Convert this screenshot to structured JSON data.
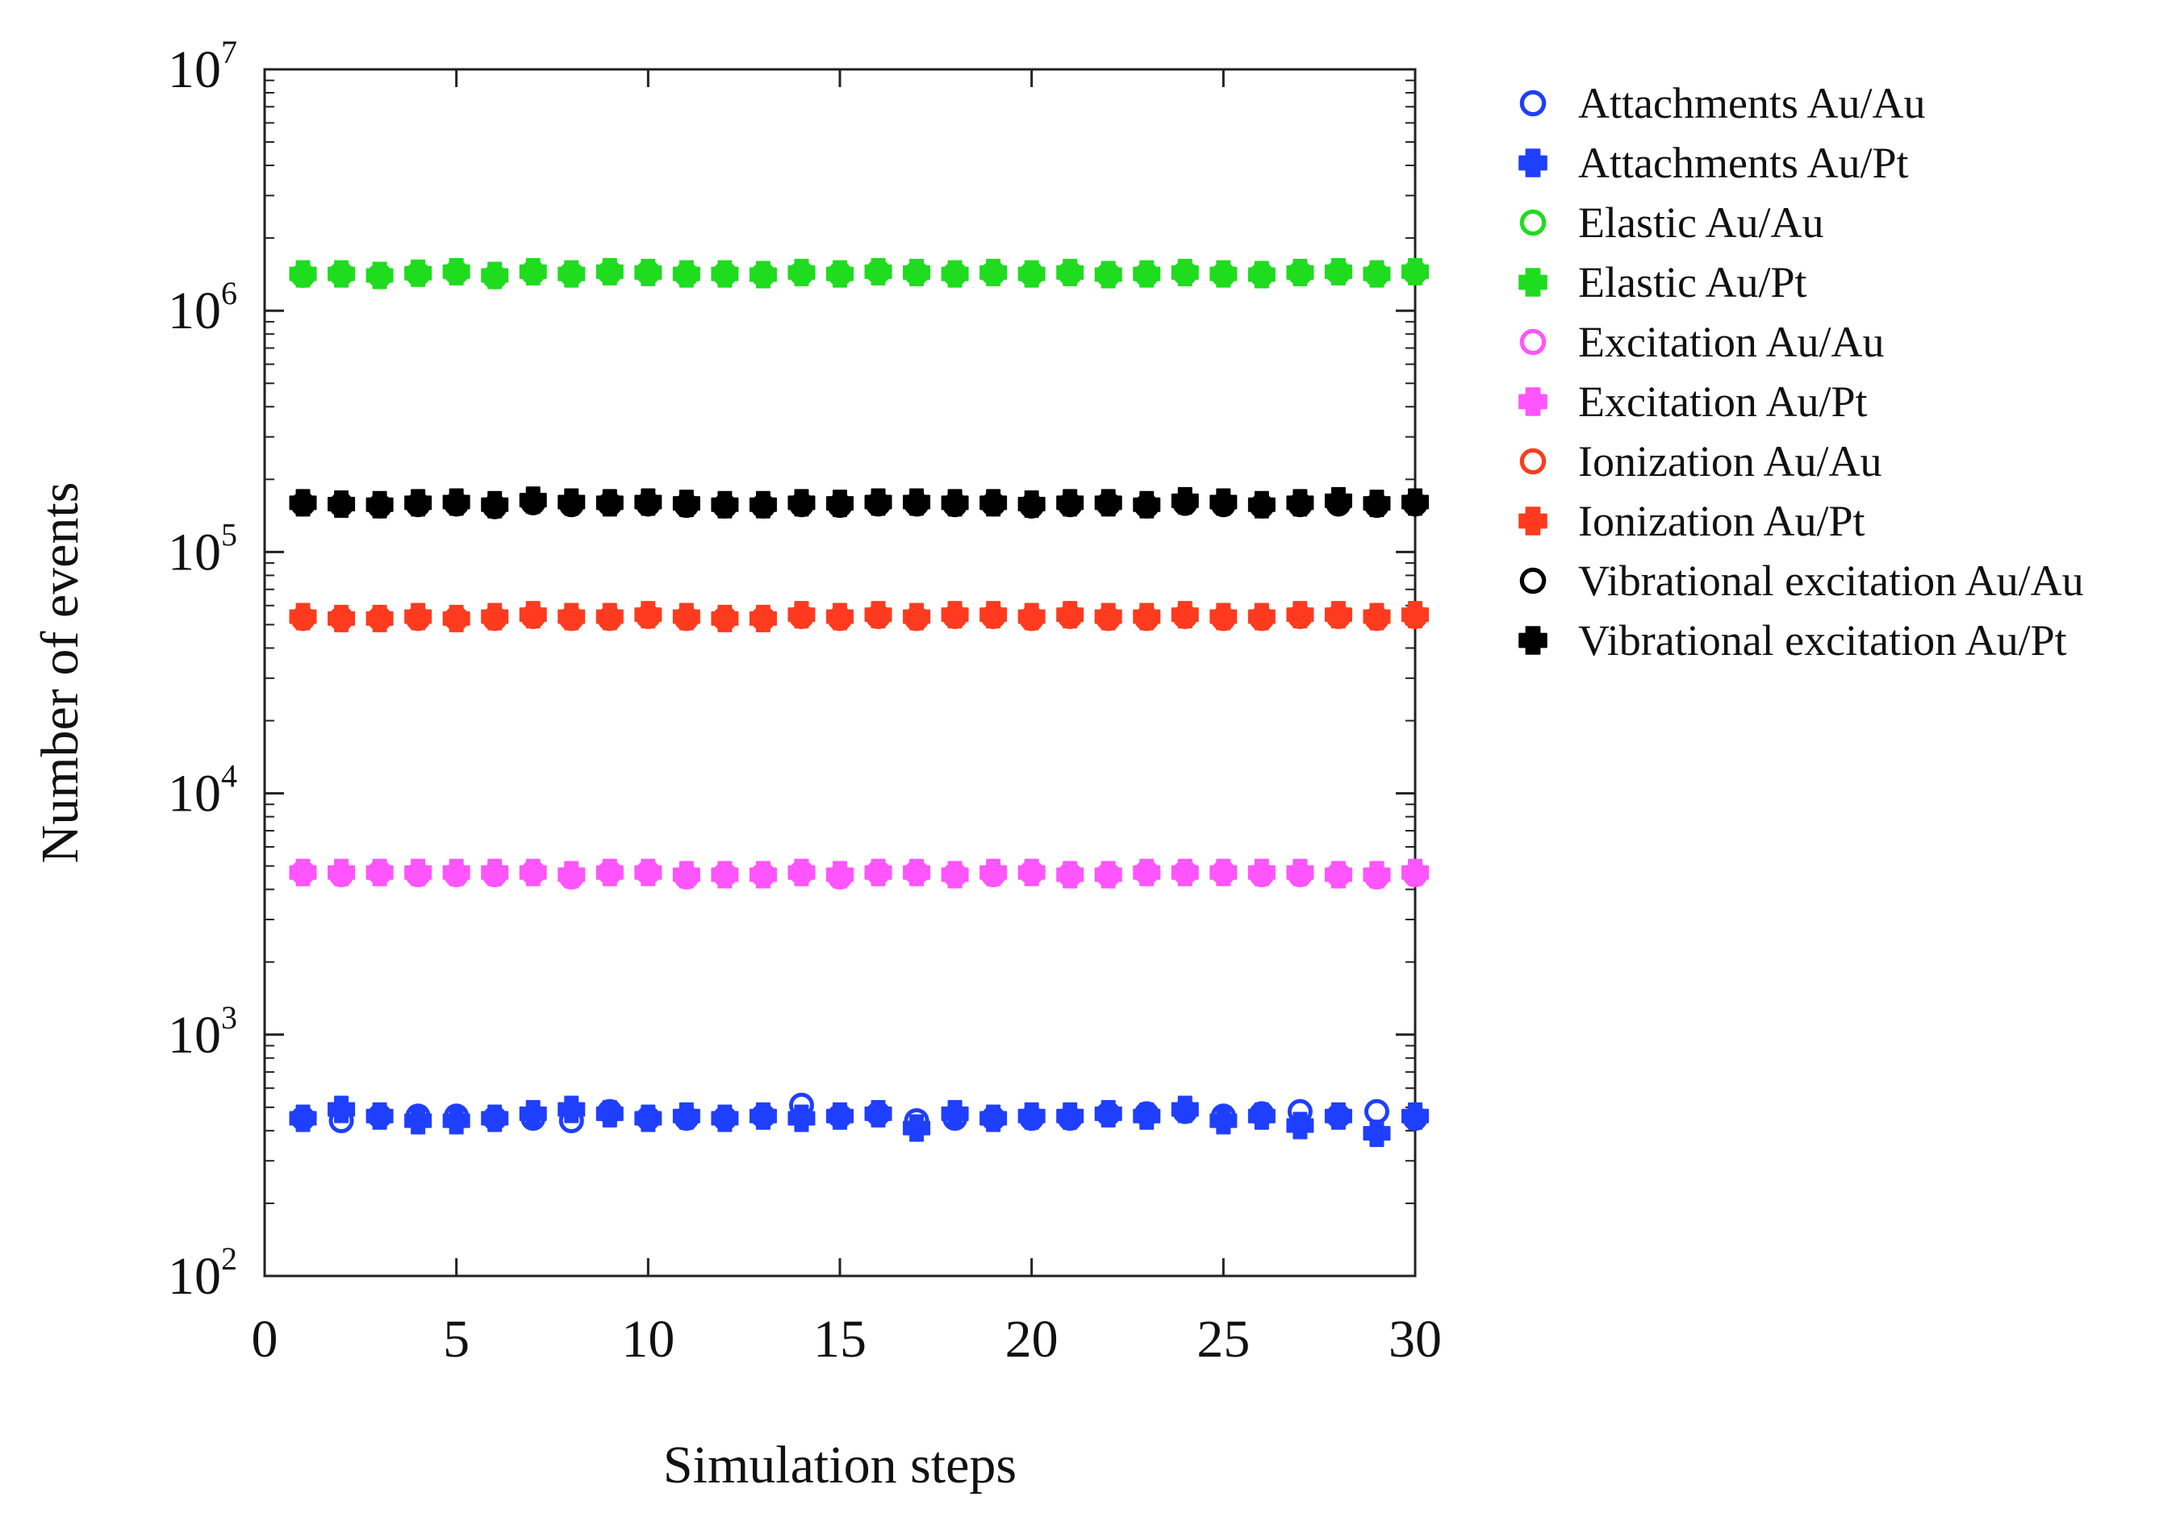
{
  "chart_data": {
    "type": "scatter",
    "title": "",
    "xlabel": "Simulation steps",
    "ylabel": "Number of events",
    "xlim": [
      0,
      30
    ],
    "ylim": [
      100,
      10000000
    ],
    "yscale": "log",
    "x_ticks": [
      {
        "value": 0,
        "label": "0"
      },
      {
        "value": 5,
        "label": "5"
      },
      {
        "value": 10,
        "label": "10"
      },
      {
        "value": 15,
        "label": "15"
      },
      {
        "value": 20,
        "label": "20"
      },
      {
        "value": 25,
        "label": "25"
      },
      {
        "value": 30,
        "label": "30"
      }
    ],
    "y_ticks": [
      {
        "value": 100,
        "base": "10",
        "exp": "2"
      },
      {
        "value": 1000,
        "base": "10",
        "exp": "3"
      },
      {
        "value": 10000,
        "base": "10",
        "exp": "4"
      },
      {
        "value": 100000,
        "base": "10",
        "exp": "5"
      },
      {
        "value": 1000000,
        "base": "10",
        "exp": "6"
      },
      {
        "value": 10000000,
        "base": "10",
        "exp": "7"
      }
    ],
    "grid": false,
    "legend_position": "outside-right",
    "x": [
      1,
      2,
      3,
      4,
      5,
      6,
      7,
      8,
      9,
      10,
      11,
      12,
      13,
      14,
      15,
      16,
      17,
      18,
      19,
      20,
      21,
      22,
      23,
      24,
      25,
      26,
      27,
      28,
      29,
      30
    ],
    "series": [
      {
        "name": "Attachments Au/Au",
        "marker": "open-circle",
        "color": "#1f3fff",
        "values": [
          450,
          440,
          460,
          460,
          460,
          450,
          450,
          440,
          480,
          450,
          450,
          450,
          460,
          510,
          460,
          470,
          440,
          450,
          450,
          450,
          450,
          470,
          470,
          480,
          460,
          470,
          480,
          460,
          480,
          450
        ]
      },
      {
        "name": "Attachments Au/Pt",
        "marker": "filled-cross",
        "color": "#1f3fff",
        "values": [
          450,
          490,
          460,
          440,
          440,
          450,
          470,
          490,
          470,
          450,
          460,
          450,
          460,
          450,
          460,
          470,
          410,
          470,
          450,
          460,
          460,
          470,
          460,
          490,
          440,
          460,
          420,
          460,
          390,
          460
        ]
      },
      {
        "name": "Elastic Au/Au",
        "marker": "open-circle",
        "color": "#1fdc1f",
        "values": [
          1400000,
          1420000,
          1400000,
          1420000,
          1440000,
          1380000,
          1440000,
          1420000,
          1440000,
          1440000,
          1410000,
          1420000,
          1410000,
          1430000,
          1420000,
          1450000,
          1430000,
          1420000,
          1430000,
          1420000,
          1430000,
          1410000,
          1410000,
          1430000,
          1410000,
          1410000,
          1430000,
          1440000,
          1410000,
          1440000
        ]
      },
      {
        "name": "Elastic Au/Pt",
        "marker": "filled-cross",
        "color": "#1fdc1f",
        "values": [
          1420000,
          1420000,
          1400000,
          1430000,
          1450000,
          1400000,
          1450000,
          1420000,
          1450000,
          1440000,
          1420000,
          1420000,
          1410000,
          1440000,
          1420000,
          1450000,
          1440000,
          1420000,
          1440000,
          1420000,
          1440000,
          1410000,
          1420000,
          1440000,
          1420000,
          1410000,
          1440000,
          1450000,
          1420000,
          1450000
        ]
      },
      {
        "name": "Excitation Au/Au",
        "marker": "open-circle",
        "color": "#ff55ff",
        "values": [
          4700,
          4600,
          4700,
          4600,
          4600,
          4600,
          4700,
          4500,
          4700,
          4700,
          4500,
          4600,
          4600,
          4700,
          4500,
          4700,
          4700,
          4600,
          4600,
          4700,
          4600,
          4600,
          4700,
          4700,
          4700,
          4600,
          4600,
          4600,
          4500,
          4600
        ]
      },
      {
        "name": "Excitation Au/Pt",
        "marker": "filled-cross",
        "color": "#ff55ff",
        "values": [
          4700,
          4700,
          4700,
          4700,
          4700,
          4700,
          4700,
          4600,
          4700,
          4700,
          4600,
          4600,
          4600,
          4700,
          4600,
          4700,
          4700,
          4600,
          4700,
          4700,
          4600,
          4600,
          4700,
          4700,
          4700,
          4700,
          4700,
          4600,
          4600,
          4700
        ]
      },
      {
        "name": "Ionization Au/Au",
        "marker": "open-circle",
        "color": "#ff3b1f",
        "values": [
          53000,
          53000,
          53000,
          53000,
          53000,
          53000,
          54000,
          53000,
          53000,
          54000,
          53000,
          53000,
          53000,
          54000,
          53000,
          54000,
          53000,
          54000,
          54000,
          53000,
          54000,
          53000,
          53000,
          54000,
          53000,
          53000,
          54000,
          54000,
          53000,
          54000
        ]
      },
      {
        "name": "Ionization Au/Pt",
        "marker": "filled-cross",
        "color": "#ff3b1f",
        "values": [
          54000,
          53000,
          53000,
          54000,
          53000,
          54000,
          55000,
          54000,
          54000,
          55000,
          54000,
          53000,
          53000,
          55000,
          54000,
          55000,
          54000,
          55000,
          55000,
          54000,
          55000,
          54000,
          54000,
          55000,
          54000,
          54000,
          55000,
          55000,
          54000,
          55000
        ]
      },
      {
        "name": "Vibrational excitation Au/Au",
        "marker": "open-circle",
        "color": "#000000",
        "values": [
          158000,
          157000,
          155000,
          157000,
          158000,
          154000,
          160000,
          157000,
          158000,
          158000,
          156000,
          155000,
          155000,
          157000,
          156000,
          158000,
          158000,
          157000,
          158000,
          155000,
          157000,
          158000,
          155000,
          159000,
          157000,
          155000,
          157000,
          158000,
          156000,
          158000
        ]
      },
      {
        "name": "Vibrational excitation Au/Pt",
        "marker": "filled-cross",
        "color": "#000000",
        "values": [
          160000,
          158000,
          157000,
          160000,
          161000,
          157000,
          164000,
          161000,
          160000,
          161000,
          159000,
          157000,
          157000,
          160000,
          159000,
          161000,
          161000,
          160000,
          160000,
          158000,
          160000,
          160000,
          157000,
          163000,
          161000,
          157000,
          160000,
          163000,
          159000,
          161000
        ]
      }
    ]
  }
}
